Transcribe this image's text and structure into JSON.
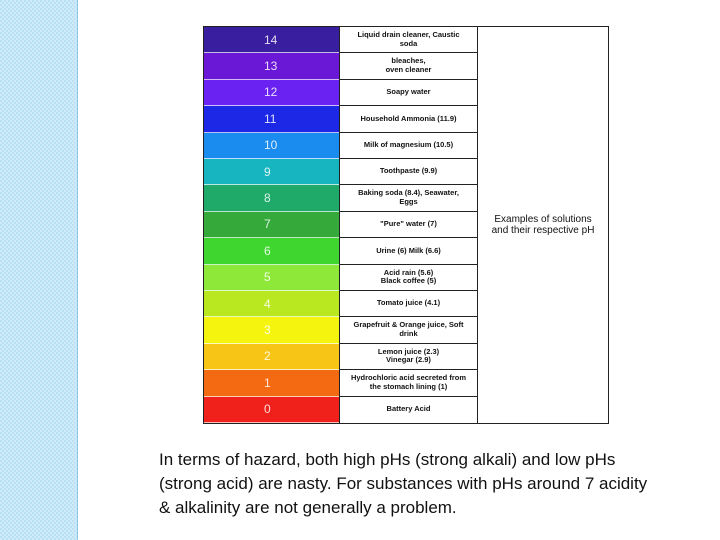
{
  "rows": [
    {
      "ph": "14",
      "example": "Liquid drain cleaner, Caustic\nsoda",
      "color": "#3a1ea0"
    },
    {
      "ph": "13",
      "example": "bleaches,\noven cleaner",
      "color": "#6a17d6"
    },
    {
      "ph": "12",
      "example": "Soapy water",
      "color": "#6a22f2"
    },
    {
      "ph": "11",
      "example": "Household Ammonia (11.9)",
      "color": "#1c28e6"
    },
    {
      "ph": "10",
      "example": "Milk of magnesium (10.5)",
      "color": "#1a8cf0"
    },
    {
      "ph": "9",
      "example": "Toothpaste (9.9)",
      "color": "#17b5bf"
    },
    {
      "ph": "8",
      "example": "Baking soda (8.4), Seawater,\nEggs",
      "color": "#1faa6a"
    },
    {
      "ph": "7",
      "example": "\"Pure\" water (7)",
      "color": "#35a93a"
    },
    {
      "ph": "6",
      "example": "Urine (6) Milk (6.6)",
      "color": "#3fd62f"
    },
    {
      "ph": "5",
      "example": "Acid rain (5.6)\nBlack coffee (5)",
      "color": "#8ee83a"
    },
    {
      "ph": "4",
      "example": "Tomato juice (4.1)",
      "color": "#b9e820"
    },
    {
      "ph": "3",
      "example": "Grapefruit & Orange juice, Soft\ndrink",
      "color": "#f4f40e"
    },
    {
      "ph": "2",
      "example": "Lemon juice (2.3)\nVinegar (2.9)",
      "color": "#f7c515"
    },
    {
      "ph": "1",
      "example": "Hydrochloric acid secreted from\nthe stomach lining (1)",
      "color": "#f46a12"
    },
    {
      "ph": "0",
      "example": "Battery Acid",
      "color": "#f0201a"
    }
  ],
  "caption": "Examples of solutions\nand their respective pH",
  "body_text": "In terms of hazard, both high pHs (strong alkali) and low pHs (strong acid) are nasty.  For substances with pHs around 7 acidity & alkalinity are not generally a problem."
}
